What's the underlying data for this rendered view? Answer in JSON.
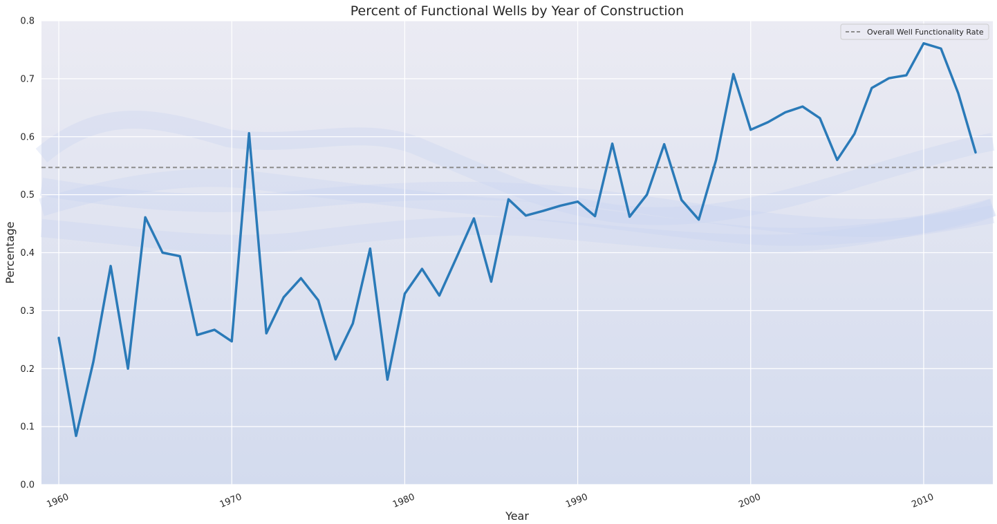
{
  "chart_data": {
    "type": "line",
    "title": "Percent of Functional Wells by Year of Construction",
    "xlabel": "Year",
    "ylabel": "Percentage",
    "xlim": [
      1959,
      2014
    ],
    "ylim": [
      0.0,
      0.8
    ],
    "x_ticks": [
      1960,
      1970,
      1980,
      1990,
      2000,
      2010
    ],
    "x_tick_labels": [
      "1960",
      "1970",
      "1980",
      "1990",
      "2000",
      "2010"
    ],
    "y_ticks": [
      0.0,
      0.1,
      0.2,
      0.3,
      0.4,
      0.5,
      0.6,
      0.7,
      0.8
    ],
    "y_tick_labels": [
      "0.0",
      "0.1",
      "0.2",
      "0.3",
      "0.4",
      "0.5",
      "0.6",
      "0.7",
      "0.8"
    ],
    "grid": true,
    "legend_position": "top-right",
    "series": [
      {
        "x": [
          1960,
          1961,
          1962,
          1963,
          1964,
          1965,
          1966,
          1967,
          1968,
          1969,
          1970,
          1971,
          1972,
          1973,
          1974,
          1975,
          1976,
          1977,
          1978,
          1979,
          1980,
          1981,
          1982,
          1983,
          1984,
          1985,
          1986,
          1987,
          1988,
          1989,
          1990,
          1991,
          1992,
          1993,
          1994,
          1995,
          1996,
          1997,
          1998,
          1999,
          2000,
          2001,
          2002,
          2003,
          2004,
          2005,
          2006,
          2007,
          2008,
          2009,
          2010,
          2011,
          2012,
          2013
        ],
        "values": [
          0.253,
          0.084,
          0.212,
          0.377,
          0.2,
          0.461,
          0.4,
          0.394,
          0.258,
          0.267,
          0.247,
          0.606,
          0.261,
          0.323,
          0.356,
          0.318,
          0.216,
          0.278,
          0.407,
          0.181,
          0.329,
          0.372,
          0.326,
          0.392,
          0.459,
          0.35,
          0.492,
          0.464,
          0.472,
          0.481,
          0.488,
          0.463,
          0.588,
          0.462,
          0.5,
          0.587,
          0.491,
          0.457,
          0.56,
          0.708,
          0.612,
          0.625,
          0.642,
          0.652,
          0.632,
          0.56,
          0.605,
          0.684,
          0.701,
          0.706,
          0.761,
          0.752,
          0.675,
          0.573
        ],
        "color": "#2a7ab8"
      }
    ],
    "reference_lines": [
      {
        "name": "Overall Well Functionality Rate",
        "y": 0.547,
        "color": "#8c8c8c",
        "style": "dashed"
      }
    ],
    "background_color": "#eaeaf2",
    "grid_color": "#ffffff"
  }
}
